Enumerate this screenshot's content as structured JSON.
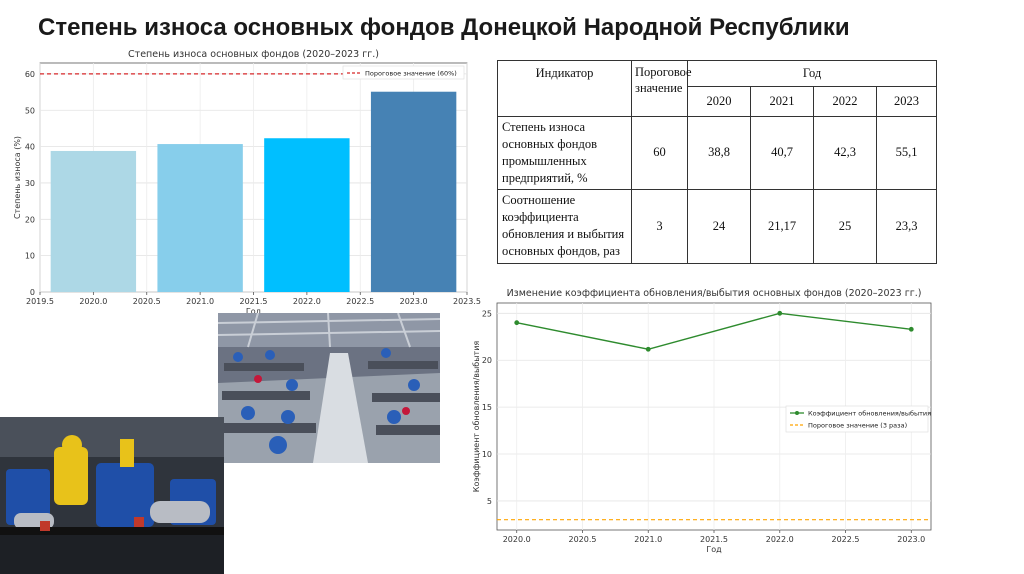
{
  "slide": {
    "title": "Степень износа основных фондов Донецкой Народной Республики"
  },
  "table": {
    "header_indicator": "Индикатор",
    "header_threshold": "Пороговое значение",
    "header_year": "Год",
    "years": [
      "2020",
      "2021",
      "2022",
      "2023"
    ],
    "rows": [
      {
        "indicator": "Степень износа основных фондов промышленных предприятий, %",
        "threshold": "60",
        "values": [
          "38,8",
          "40,7",
          "42,3",
          "55,1"
        ]
      },
      {
        "indicator": "Соотношение коэффициента обновления и выбытия основных фондов, раз",
        "threshold": "3",
        "values": [
          "24",
          "21,17",
          "25",
          "23,3"
        ]
      }
    ]
  },
  "chart_data": [
    {
      "type": "bar",
      "title": "Степень износа основных фондов (2020–2023 гг.)",
      "xlabel": "Год",
      "ylabel": "Степень износа (%)",
      "x": [
        2020,
        2021,
        2022,
        2023
      ],
      "values": [
        38.8,
        40.7,
        42.3,
        55.1
      ],
      "bar_colors": [
        "#add8e6",
        "#87ceeb",
        "#00bfff",
        "#4682b4"
      ],
      "xticks": [
        "2019.5",
        "2020.0",
        "2020.5",
        "2021.0",
        "2021.5",
        "2022.0",
        "2022.5",
        "2023.0",
        "2023.5"
      ],
      "xtick_values": [
        2019.5,
        2020,
        2020.5,
        2021,
        2021.5,
        2022,
        2022.5,
        2023,
        2023.5
      ],
      "yticks": [
        "0",
        "10",
        "20",
        "30",
        "40",
        "50",
        "60"
      ],
      "ytick_values": [
        0,
        10,
        20,
        30,
        40,
        50,
        60
      ],
      "xlim": [
        2019.5,
        2023.5
      ],
      "ylim": [
        0,
        63
      ],
      "threshold": {
        "value": 60,
        "label": "Пороговое значение (60%)",
        "color": "#d62728"
      },
      "legend_position": "top-right",
      "grid": true
    },
    {
      "type": "line",
      "title": "Изменение коэффициента обновления/выбытия основных фондов (2020–2023 гг.)",
      "xlabel": "Год",
      "ylabel": "Коэффициент обновления/выбытия",
      "x": [
        2020,
        2021,
        2022,
        2023
      ],
      "series": [
        {
          "name": "Коэффициент обновления/выбытия",
          "values": [
            24,
            21.17,
            25,
            23.3
          ],
          "color": "#2e8b2e"
        }
      ],
      "xticks": [
        "2020.0",
        "2020.5",
        "2021.0",
        "2021.5",
        "2022.0",
        "2022.5",
        "2023.0"
      ],
      "xtick_values": [
        2020,
        2020.5,
        2021,
        2021.5,
        2022,
        2022.5,
        2023
      ],
      "yticks": [
        "5",
        "10",
        "15",
        "20",
        "25"
      ],
      "ytick_values": [
        5,
        10,
        15,
        20,
        25
      ],
      "xlim": [
        2019.85,
        2023.15
      ],
      "ylim": [
        1.9,
        26.1
      ],
      "threshold": {
        "value": 3,
        "label": "Пороговое значение (3 раза)",
        "color": "#ffa500"
      },
      "legend_position": "center-right",
      "grid": true
    }
  ]
}
